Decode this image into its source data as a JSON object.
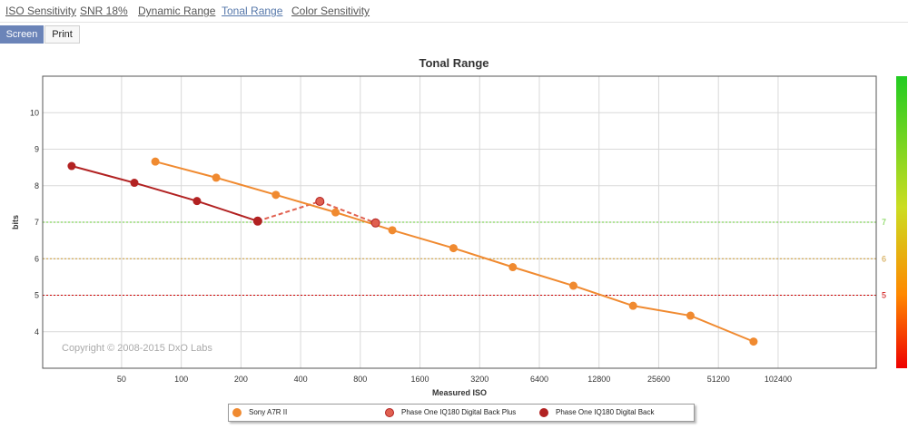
{
  "tabs": [
    {
      "label": "ISO Sensitivity",
      "active": false
    },
    {
      "label": "SNR 18%",
      "active": false
    },
    {
      "label": "Dynamic Range",
      "active": false
    },
    {
      "label": "Tonal Range",
      "active": true
    },
    {
      "label": "Color Sensitivity",
      "active": false
    }
  ],
  "buttons": {
    "screen": "Screen",
    "print": "Print"
  },
  "copyright": "Copyright © 2008-2015 DxO Labs",
  "chart_data": {
    "type": "line",
    "title": "Tonal Range",
    "xlabel": "Measured ISO",
    "ylabel": "bits",
    "x_scale": "log2",
    "x_ticks": [
      "50",
      "100",
      "200",
      "400",
      "800",
      "1600",
      "3200",
      "6400",
      "12800",
      "25600",
      "51200",
      "102400"
    ],
    "y_ticks": [
      "4",
      "5",
      "6",
      "7",
      "8",
      "9",
      "10"
    ],
    "xlim": [
      20,
      320000
    ],
    "ylim": [
      3,
      11
    ],
    "grid": true,
    "reference_lines": [
      {
        "value": 7,
        "label": "7",
        "color": "#66cc33"
      },
      {
        "value": 6,
        "label": "6",
        "color": "#cc9933"
      },
      {
        "value": 5,
        "label": "5",
        "color": "#cc0000"
      }
    ],
    "legend_position": "bottom",
    "series": [
      {
        "name": "Sony A7R II",
        "color": "#f08a30",
        "dashed": false,
        "points": [
          [
            74,
            8.66
          ],
          [
            150,
            8.22
          ],
          [
            300,
            7.75
          ],
          [
            600,
            7.27
          ],
          [
            1160,
            6.78
          ],
          [
            2360,
            6.29
          ],
          [
            4700,
            5.77
          ],
          [
            9500,
            5.26
          ],
          [
            19000,
            4.71
          ],
          [
            37000,
            4.44
          ],
          [
            77000,
            3.73
          ]
        ]
      },
      {
        "name": "Phase One IQ180 Digital Back Plus",
        "color": "#e06050",
        "dashed": true,
        "points": [
          [
            243,
            7.03
          ],
          [
            500,
            7.57
          ],
          [
            955,
            6.98
          ]
        ]
      },
      {
        "name": "Phase One IQ180 Digital Back",
        "color": "#b22222",
        "dashed": false,
        "points": [
          [
            28,
            8.54
          ],
          [
            58,
            8.08
          ],
          [
            120,
            7.58
          ],
          [
            243,
            7.03
          ]
        ]
      }
    ]
  }
}
